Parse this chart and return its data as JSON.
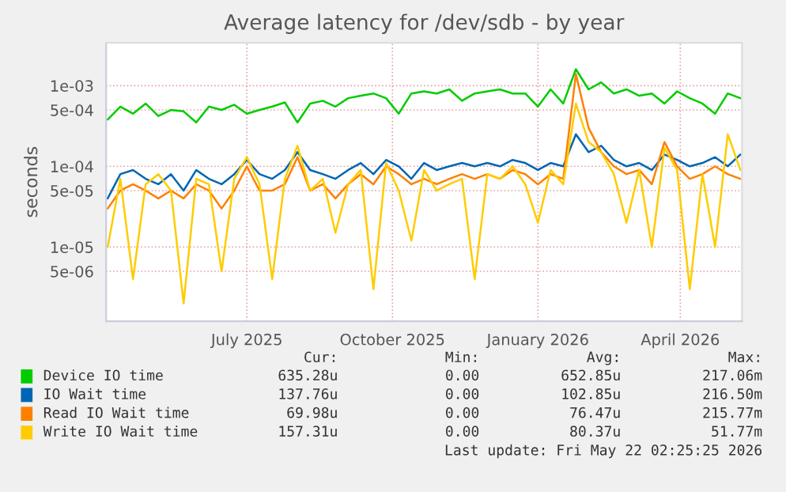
{
  "chart_data": {
    "type": "line",
    "title": "Average latency for /dev/sdb - by year",
    "ylabel": "seconds",
    "x": [
      "2025-04-16",
      "2025-04-24",
      "2025-05-02",
      "2025-05-10",
      "2025-05-18",
      "2025-05-26",
      "2025-06-03",
      "2025-06-11",
      "2025-06-19",
      "2025-06-27",
      "2025-07-05",
      "2025-07-13",
      "2025-07-21",
      "2025-07-29",
      "2025-08-06",
      "2025-08-14",
      "2025-08-22",
      "2025-08-30",
      "2025-09-07",
      "2025-09-15",
      "2025-09-23",
      "2025-10-01",
      "2025-10-09",
      "2025-10-17",
      "2025-10-25",
      "2025-11-02",
      "2025-11-10",
      "2025-11-18",
      "2025-11-26",
      "2025-12-04",
      "2025-12-12",
      "2025-12-20",
      "2025-12-28",
      "2026-01-05",
      "2026-01-13",
      "2026-01-21",
      "2026-01-29",
      "2026-02-06",
      "2026-02-14",
      "2026-02-22",
      "2026-03-02",
      "2026-03-10",
      "2026-03-18",
      "2026-03-26",
      "2026-04-03",
      "2026-04-11",
      "2026-04-19",
      "2026-04-27",
      "2026-05-05",
      "2026-05-13",
      "2026-05-21"
    ],
    "series": [
      {
        "name": "Device IO time",
        "color": "#00cc00",
        "values": [
          0.00038,
          0.00055,
          0.00045,
          0.0006,
          0.00042,
          0.0005,
          0.00048,
          0.00035,
          0.00055,
          0.0005,
          0.00058,
          0.00045,
          0.0005,
          0.00055,
          0.00062,
          0.00035,
          0.0006,
          0.00065,
          0.00055,
          0.0007,
          0.00075,
          0.0008,
          0.0007,
          0.00045,
          0.0008,
          0.00085,
          0.0008,
          0.0009,
          0.00065,
          0.0008,
          0.00085,
          0.0009,
          0.0008,
          0.0008,
          0.00055,
          0.0009,
          0.0006,
          0.0016,
          0.0009,
          0.0011,
          0.0008,
          0.0009,
          0.00075,
          0.0008,
          0.0006,
          0.00085,
          0.0007,
          0.0006,
          0.00045,
          0.0008,
          0.0007
        ]
      },
      {
        "name": "IO Wait time",
        "color": "#0066b3",
        "values": [
          4e-05,
          8e-05,
          9e-05,
          7e-05,
          6e-05,
          8e-05,
          5e-05,
          9e-05,
          7e-05,
          6e-05,
          8e-05,
          0.00012,
          8e-05,
          7e-05,
          9e-05,
          0.00015,
          9e-05,
          8e-05,
          7e-05,
          9e-05,
          0.00011,
          8e-05,
          0.00012,
          0.0001,
          7e-05,
          0.00011,
          9e-05,
          0.0001,
          0.00011,
          0.0001,
          0.00011,
          0.0001,
          0.00012,
          0.00011,
          9e-05,
          0.00011,
          0.0001,
          0.00025,
          0.00015,
          0.00018,
          0.00012,
          0.0001,
          0.00011,
          9e-05,
          0.00014,
          0.00012,
          0.0001,
          0.00011,
          0.00013,
          0.0001,
          0.00014
        ]
      },
      {
        "name": "Read IO Wait time",
        "color": "#ff8000",
        "values": [
          3e-05,
          5e-05,
          6e-05,
          5e-05,
          4e-05,
          5e-05,
          4e-05,
          6e-05,
          5e-05,
          3e-05,
          5e-05,
          0.0001,
          5e-05,
          5e-05,
          6e-05,
          0.00013,
          5e-05,
          6e-05,
          4e-05,
          6e-05,
          8e-05,
          6e-05,
          0.0001,
          8e-05,
          6e-05,
          7e-05,
          6e-05,
          7e-05,
          8e-05,
          7e-05,
          8e-05,
          7e-05,
          9e-05,
          8e-05,
          6e-05,
          8e-05,
          7e-05,
          0.0014,
          0.0003,
          0.00015,
          0.0001,
          8e-05,
          9e-05,
          6e-05,
          0.0002,
          0.0001,
          7e-05,
          8e-05,
          0.0001,
          8e-05,
          7e-05
        ]
      },
      {
        "name": "Write IO Wait time",
        "color": "#ffcc00",
        "values": [
          1e-05,
          7e-05,
          4e-06,
          6e-05,
          8e-05,
          5e-05,
          2e-06,
          7e-05,
          6e-05,
          5e-06,
          7e-05,
          0.00013,
          6e-05,
          4e-06,
          7e-05,
          0.00018,
          5e-05,
          7e-05,
          1.5e-05,
          6e-05,
          9e-05,
          3e-06,
          0.00011,
          5e-05,
          1.2e-05,
          9e-05,
          5e-05,
          6e-05,
          7e-05,
          4e-06,
          8e-05,
          7e-05,
          0.0001,
          6e-05,
          2e-05,
          9e-05,
          6e-05,
          0.0006,
          0.0002,
          0.00015,
          8e-05,
          2e-05,
          9e-05,
          1e-05,
          0.00017,
          9e-05,
          3e-06,
          8e-05,
          1e-05,
          0.00025,
          9e-05
        ]
      }
    ],
    "log": true,
    "xlim": [
      "2025-04-15",
      "2026-05-22"
    ],
    "ylim": [
      1.2e-06,
      0.0034
    ],
    "xticks": [
      {
        "value": "2025-07-13",
        "label": "July 2025"
      },
      {
        "value": "2025-10-13",
        "label": "October 2025"
      },
      {
        "value": "2026-01-13",
        "label": "January 2026"
      },
      {
        "value": "2026-04-13",
        "label": "April 2026"
      }
    ],
    "yticks": [
      {
        "value": 5e-06,
        "label": "5e-06"
      },
      {
        "value": 1e-05,
        "label": "1e-05"
      },
      {
        "value": 5e-05,
        "label": "5e-05"
      },
      {
        "value": 0.0001,
        "label": "1e-04"
      },
      {
        "value": 0.0005,
        "label": "5e-04"
      },
      {
        "value": 0.001,
        "label": "1e-03"
      }
    ],
    "grid": true,
    "legend": "bottom",
    "annotations": [
      "Cur:",
      "Min:",
      "Avg:",
      "Max:",
      "635.28u",
      "0.00",
      "652.85u",
      "217.06m",
      "137.76u",
      "0.00",
      "102.85u",
      "216.50m",
      "69.98u",
      "0.00",
      "76.47u",
      "215.77m",
      "157.31u",
      "0.00",
      "80.37u",
      "51.77m",
      "Last update: Fri May 22 02:25:25 2026"
    ]
  }
}
